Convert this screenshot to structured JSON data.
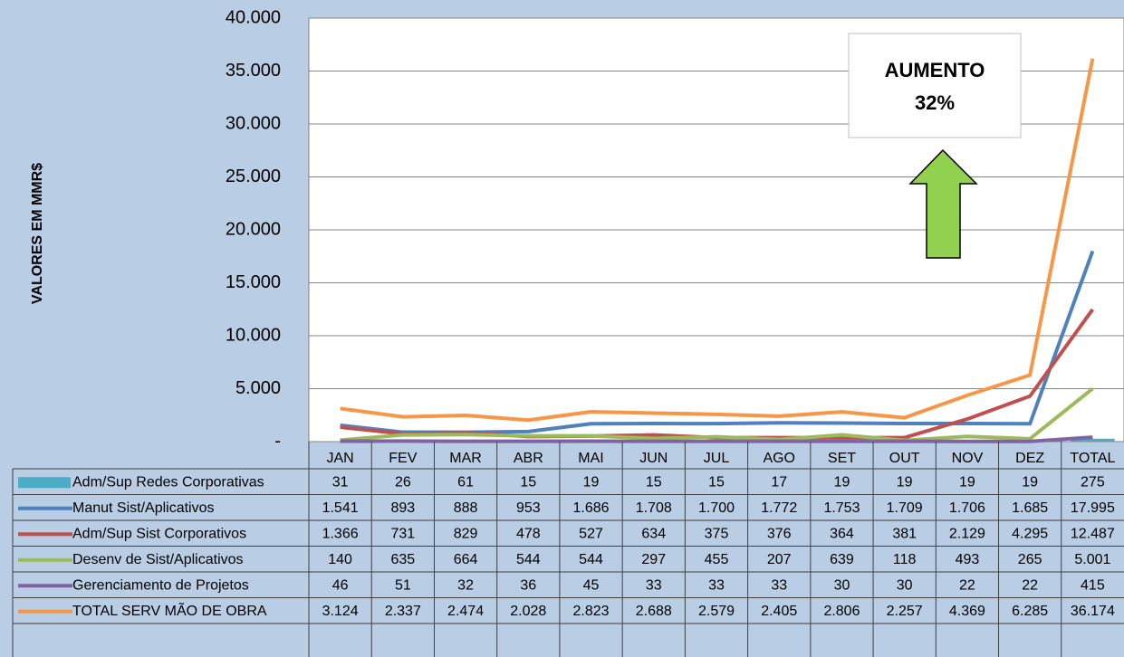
{
  "chart_data": {
    "type": "line",
    "y_label": "VALORES EM MMR$",
    "annotation": [
      "AUMENTO",
      "32%"
    ],
    "categories": [
      "JAN",
      "FEV",
      "MAR",
      "ABR",
      "MAI",
      "JUN",
      "JUL",
      "AGO",
      "SET",
      "OUT",
      "NOV",
      "DEZ",
      "TOTAL"
    ],
    "ylim": [
      0,
      40000
    ],
    "yticks": [
      {
        "value": 0,
        "label": "-"
      },
      {
        "value": 5000,
        "label": "5.000"
      },
      {
        "value": 10000,
        "label": "10.000"
      },
      {
        "value": 15000,
        "label": "15.000"
      },
      {
        "value": 20000,
        "label": "20.000"
      },
      {
        "value": 25000,
        "label": "25.000"
      },
      {
        "value": 30000,
        "label": "30.000"
      },
      {
        "value": 35000,
        "label": "35.000"
      },
      {
        "value": 40000,
        "label": "40.000"
      }
    ],
    "grid": true,
    "series": [
      {
        "name": "Adm/Sup Redes Corporativas",
        "type": "bar",
        "color": "#4bacc6",
        "values": [
          31,
          26,
          61,
          15,
          19,
          15,
          15,
          17,
          19,
          19,
          19,
          19,
          275
        ],
        "value_labels": [
          "31",
          "26",
          "61",
          "15",
          "19",
          "15",
          "15",
          "17",
          "19",
          "19",
          "19",
          "19",
          "275"
        ]
      },
      {
        "name": "Manut Sist/Aplicativos",
        "type": "line",
        "color": "#4f81bd",
        "values": [
          1541,
          893,
          888,
          953,
          1686,
          1708,
          1700,
          1772,
          1753,
          1709,
          1706,
          1685,
          17995
        ],
        "value_labels": [
          "1.541",
          "893",
          "888",
          "953",
          "1.686",
          "1.708",
          "1.700",
          "1.772",
          "1.753",
          "1.709",
          "1.706",
          "1.685",
          "17.995"
        ]
      },
      {
        "name": "Adm/Sup Sist Corporativos",
        "type": "line",
        "color": "#c0504d",
        "values": [
          1366,
          731,
          829,
          478,
          527,
          634,
          375,
          376,
          364,
          381,
          2129,
          4295,
          12487
        ],
        "value_labels": [
          "1.366",
          "731",
          "829",
          "478",
          "527",
          "634",
          "375",
          "376",
          "364",
          "381",
          "2.129",
          "4.295",
          "12.487"
        ]
      },
      {
        "name": "Desenv de Sist/Aplicativos",
        "type": "line",
        "color": "#9bbb59",
        "values": [
          140,
          635,
          664,
          544,
          544,
          297,
          455,
          207,
          639,
          118,
          493,
          265,
          5001
        ],
        "value_labels": [
          "140",
          "635",
          "664",
          "544",
          "544",
          "297",
          "455",
          "207",
          "639",
          "118",
          "493",
          "265",
          "5.001"
        ]
      },
      {
        "name": "Gerenciamento de Projetos",
        "type": "line",
        "color": "#8064a2",
        "values": [
          46,
          51,
          32,
          36,
          45,
          33,
          33,
          33,
          30,
          30,
          22,
          22,
          415
        ],
        "value_labels": [
          "46",
          "51",
          "32",
          "36",
          "45",
          "33",
          "33",
          "33",
          "30",
          "30",
          "22",
          "22",
          "415"
        ]
      },
      {
        "name": "TOTAL SERV MÃO DE OBRA",
        "type": "line",
        "color": "#f79646",
        "values": [
          3124,
          2337,
          2474,
          2028,
          2823,
          2688,
          2579,
          2405,
          2806,
          2257,
          4369,
          6285,
          36174
        ],
        "value_labels": [
          "3.124",
          "2.337",
          "2.474",
          "2.028",
          "2.823",
          "2.688",
          "2.579",
          "2.405",
          "2.806",
          "2.257",
          "4.369",
          "6.285",
          "36.174"
        ]
      }
    ]
  }
}
